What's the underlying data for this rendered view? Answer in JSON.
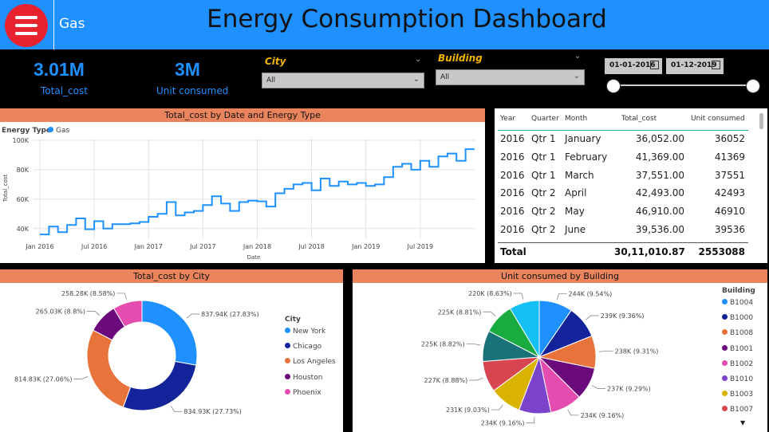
{
  "header": {
    "energy_type": "Gas",
    "title": "Energy Consumption Dashboard"
  },
  "kpis": {
    "total_cost_value": "3.01M",
    "total_cost_label": "Total_cost",
    "units_value": "3M",
    "units_label": "Unit consumed"
  },
  "filters": {
    "city_label": "City",
    "city_value": "All",
    "building_label": "Building",
    "building_value": "All",
    "date_start": "01-01-2016",
    "date_end": "01-12-2019"
  },
  "line_chart": {
    "title": "Total_cost by Date and Energy Type",
    "legend_title": "Energy Type",
    "legend_item": "Gas",
    "ylabel": "Total_cost",
    "xlabel": "Date",
    "y_ticks": [
      "100K",
      "80K",
      "60K",
      "40K"
    ],
    "x_ticks": [
      "Jan 2016",
      "Jul 2016",
      "Jan 2017",
      "Jul 2017",
      "Jan 2018",
      "Jul 2018",
      "Jan 2019",
      "Jul 2019"
    ]
  },
  "table": {
    "headers": [
      "Year",
      "Quarter",
      "Month",
      "Total_cost",
      "Unit consumed"
    ],
    "rows": [
      [
        "2016",
        "Qtr 1",
        "January",
        "36,052.00",
        "36052"
      ],
      [
        "2016",
        "Qtr 1",
        "February",
        "41,369.00",
        "41369"
      ],
      [
        "2016",
        "Qtr 1",
        "March",
        "37,551.00",
        "37551"
      ],
      [
        "2016",
        "Qtr 2",
        "April",
        "42,493.00",
        "42493"
      ],
      [
        "2016",
        "Qtr 2",
        "May",
        "46,910.00",
        "46910"
      ],
      [
        "2016",
        "Qtr 2",
        "June",
        "39,536.00",
        "39536"
      ]
    ],
    "total_label": "Total",
    "total_cost": "30,11,010.87",
    "total_units": "2553088"
  },
  "donut": {
    "title": "Total_cost by City",
    "legend_title": "City"
  },
  "pie": {
    "title": "Unit consumed by Building",
    "legend_title": "Building"
  },
  "colors": {
    "accent": "#1e90ff",
    "panel_title_bg": "#e9845c",
    "menu_button": "#e8222e",
    "filter_label": "#f0b400"
  },
  "chart_data": [
    {
      "type": "line",
      "title": "Total_cost by Date and Energy Type",
      "xlabel": "Date",
      "ylabel": "Total_cost",
      "ylim": [
        35000,
        100000
      ],
      "x": [
        "2016-01",
        "2016-02",
        "2016-03",
        "2016-04",
        "2016-05",
        "2016-06",
        "2016-07",
        "2016-08",
        "2016-09",
        "2016-10",
        "2016-11",
        "2016-12",
        "2017-01",
        "2017-02",
        "2017-03",
        "2017-04",
        "2017-05",
        "2017-06",
        "2017-07",
        "2017-08",
        "2017-09",
        "2017-10",
        "2017-11",
        "2017-12",
        "2018-01",
        "2018-02",
        "2018-03",
        "2018-04",
        "2018-05",
        "2018-06",
        "2018-07",
        "2018-08",
        "2018-09",
        "2018-10",
        "2018-11",
        "2018-12",
        "2019-01",
        "2019-02",
        "2019-03",
        "2019-04",
        "2019-05",
        "2019-06",
        "2019-07",
        "2019-08",
        "2019-09",
        "2019-10",
        "2019-11",
        "2019-12"
      ],
      "series": [
        {
          "name": "Gas",
          "values": [
            36052,
            41369,
            37551,
            42493,
            46910,
            39536,
            45000,
            40000,
            43000,
            43000,
            43500,
            44500,
            48000,
            50000,
            58000,
            49000,
            51000,
            52000,
            56000,
            62000,
            57000,
            52000,
            58000,
            59000,
            58500,
            55000,
            64000,
            67000,
            70000,
            71000,
            66000,
            74000,
            69000,
            72000,
            70000,
            71000,
            69000,
            70000,
            75000,
            82000,
            84000,
            80000,
            86000,
            82000,
            89000,
            91000,
            86000,
            94000
          ]
        }
      ],
      "legend": [
        "Gas"
      ],
      "grid": true,
      "legend_placement": "top-left"
    },
    {
      "type": "pie",
      "title": "Total_cost by City",
      "categories": [
        "New York",
        "Chicago",
        "Los Angeles",
        "Houston",
        "Phoenix"
      ],
      "values": [
        837940,
        834930,
        814830,
        265030,
        258280
      ],
      "labels": [
        "837.94K (27.83%)",
        "834.93K (27.73%)",
        "814.83K (27.06%)",
        "265.03K (8.8%)",
        "258.28K (8.58%)"
      ],
      "colors": [
        "#1e90ff",
        "#13249a",
        "#e8743b",
        "#6c0a7d",
        "#e44cb0"
      ],
      "donut": true,
      "legend_placement": "right"
    },
    {
      "type": "pie",
      "title": "Unit consumed by Building",
      "categories": [
        "B1004",
        "B1000",
        "B1008",
        "B1001",
        "B1002",
        "B1010",
        "B1003",
        "B1007",
        "B1009",
        "B1005",
        "B1006"
      ],
      "values": [
        244000,
        239000,
        238000,
        237000,
        234000,
        234000,
        231000,
        227000,
        225000,
        225000,
        220000
      ],
      "labels": [
        "244K (9.54%)",
        "239K (9.36%)",
        "238K (9.31%)",
        "237K (9.29%)",
        "234K (9.16%)",
        "234K (9.16%)",
        "231K (9.03%)",
        "227K (8.88%)",
        "225K (8.82%)",
        "225K (8.81%)",
        "220K (8.63%)"
      ],
      "colors": [
        "#1e90ff",
        "#13249a",
        "#e8743b",
        "#6c0a7d",
        "#e44cb0",
        "#7b43c9",
        "#d9b300",
        "#d64550",
        "#197278",
        "#1aab40",
        "#15c0f5"
      ],
      "legend_visible": [
        "B1004",
        "B1000",
        "B1008",
        "B1001",
        "B1002",
        "B1010",
        "B1003",
        "B1007"
      ],
      "legend_placement": "right"
    }
  ]
}
